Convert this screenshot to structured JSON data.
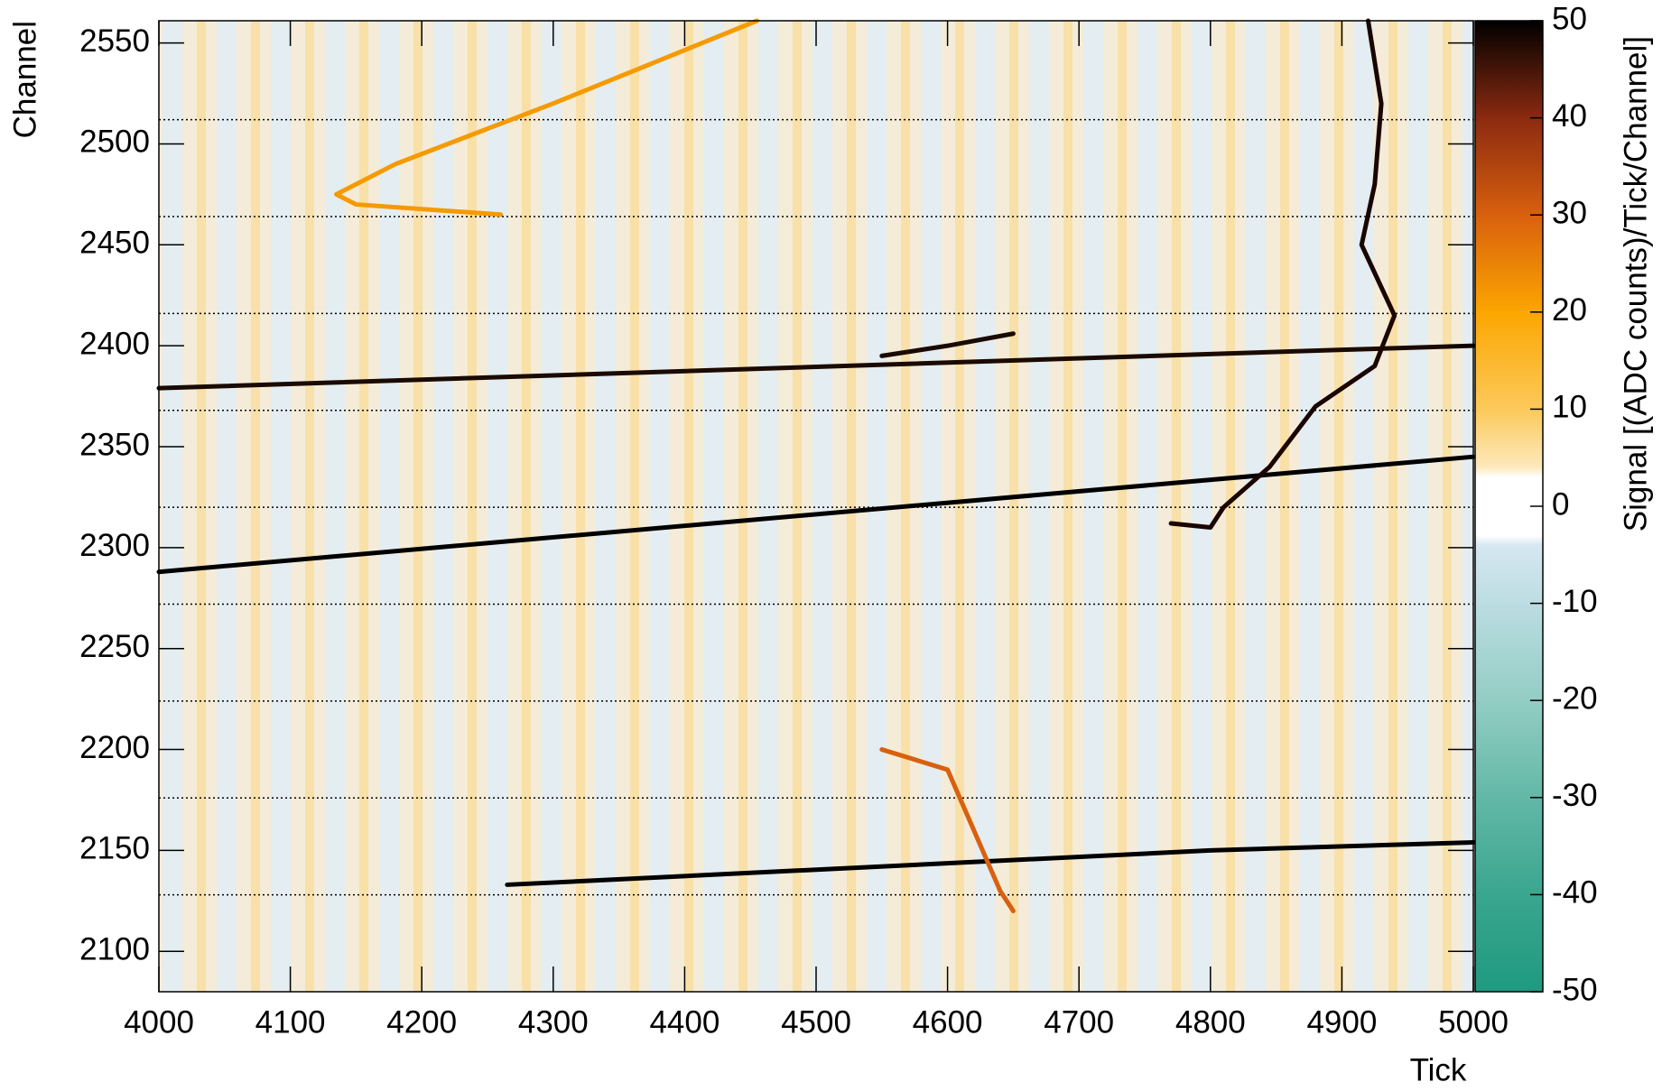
{
  "chart_data": {
    "type": "heatmap",
    "x_label": "Tick",
    "y_label": "Channel",
    "xlim": [
      4000,
      5000
    ],
    "ylim": [
      2080,
      2561
    ],
    "xticks": [
      4000,
      4100,
      4200,
      4300,
      4400,
      4500,
      4600,
      4700,
      4800,
      4900,
      5000
    ],
    "yticks": [
      2100,
      2150,
      2200,
      2250,
      2300,
      2350,
      2400,
      2450,
      2500,
      2550
    ],
    "boundaries": [
      2128,
      2176,
      2224,
      2272,
      2320,
      2368,
      2416,
      2464,
      2512
    ],
    "series": [
      {
        "color": "#000000",
        "x": [
          4000,
          5000
        ],
        "y": [
          2288,
          2345
        ]
      },
      {
        "color": "#1a0a00",
        "x": [
          4000,
          4900,
          5000
        ],
        "y": [
          2379,
          2398,
          2400
        ]
      },
      {
        "color": "#000000",
        "x": [
          4265,
          4800,
          5000
        ],
        "y": [
          2133,
          2150,
          2154
        ]
      },
      {
        "color": "#f59a00",
        "x": [
          4455,
          4300,
          4180,
          4135,
          4150,
          4260
        ],
        "y": [
          2561,
          2520,
          2490,
          2475,
          2470,
          2465
        ]
      },
      {
        "color": "#1a0500",
        "x": [
          4920,
          4930,
          4925,
          4915,
          4940,
          4925,
          4880,
          4845,
          4810,
          4800,
          4770
        ],
        "y": [
          2561,
          2520,
          2480,
          2450,
          2415,
          2390,
          2370,
          2340,
          2320,
          2310,
          2312
        ]
      },
      {
        "color": "#1a0a00",
        "x": [
          4550,
          4600,
          4650
        ],
        "y": [
          2395,
          2400,
          2406
        ]
      },
      {
        "color": "#d8600e",
        "x": [
          4550,
          4600,
          4640,
          4650
        ],
        "y": [
          2200,
          2190,
          2130,
          2120
        ]
      }
    ],
    "colorbar": {
      "label": "Signal [(ADC counts)/Tick/Channel]",
      "zlim": [
        -50,
        50
      ],
      "zticks": [
        -50,
        -40,
        -30,
        -20,
        -10,
        0,
        10,
        20,
        30,
        40,
        50
      ],
      "stops": [
        {
          "z": -50,
          "color": "#1f9a80"
        },
        {
          "z": -40,
          "color": "#3aa68f"
        },
        {
          "z": -30,
          "color": "#62b8a6"
        },
        {
          "z": -20,
          "color": "#93cdc4"
        },
        {
          "z": -10,
          "color": "#bcdde2"
        },
        {
          "z": -4,
          "color": "#d6e7f0"
        },
        {
          "z": -3,
          "color": "#ffffff"
        },
        {
          "z": 3,
          "color": "#ffffff"
        },
        {
          "z": 4,
          "color": "#fde9bd"
        },
        {
          "z": 10,
          "color": "#fcc95a"
        },
        {
          "z": 20,
          "color": "#fca600"
        },
        {
          "z": 30,
          "color": "#d8600e"
        },
        {
          "z": 40,
          "color": "#8b2a10"
        },
        {
          "z": 50,
          "color": "#000000"
        }
      ]
    }
  }
}
